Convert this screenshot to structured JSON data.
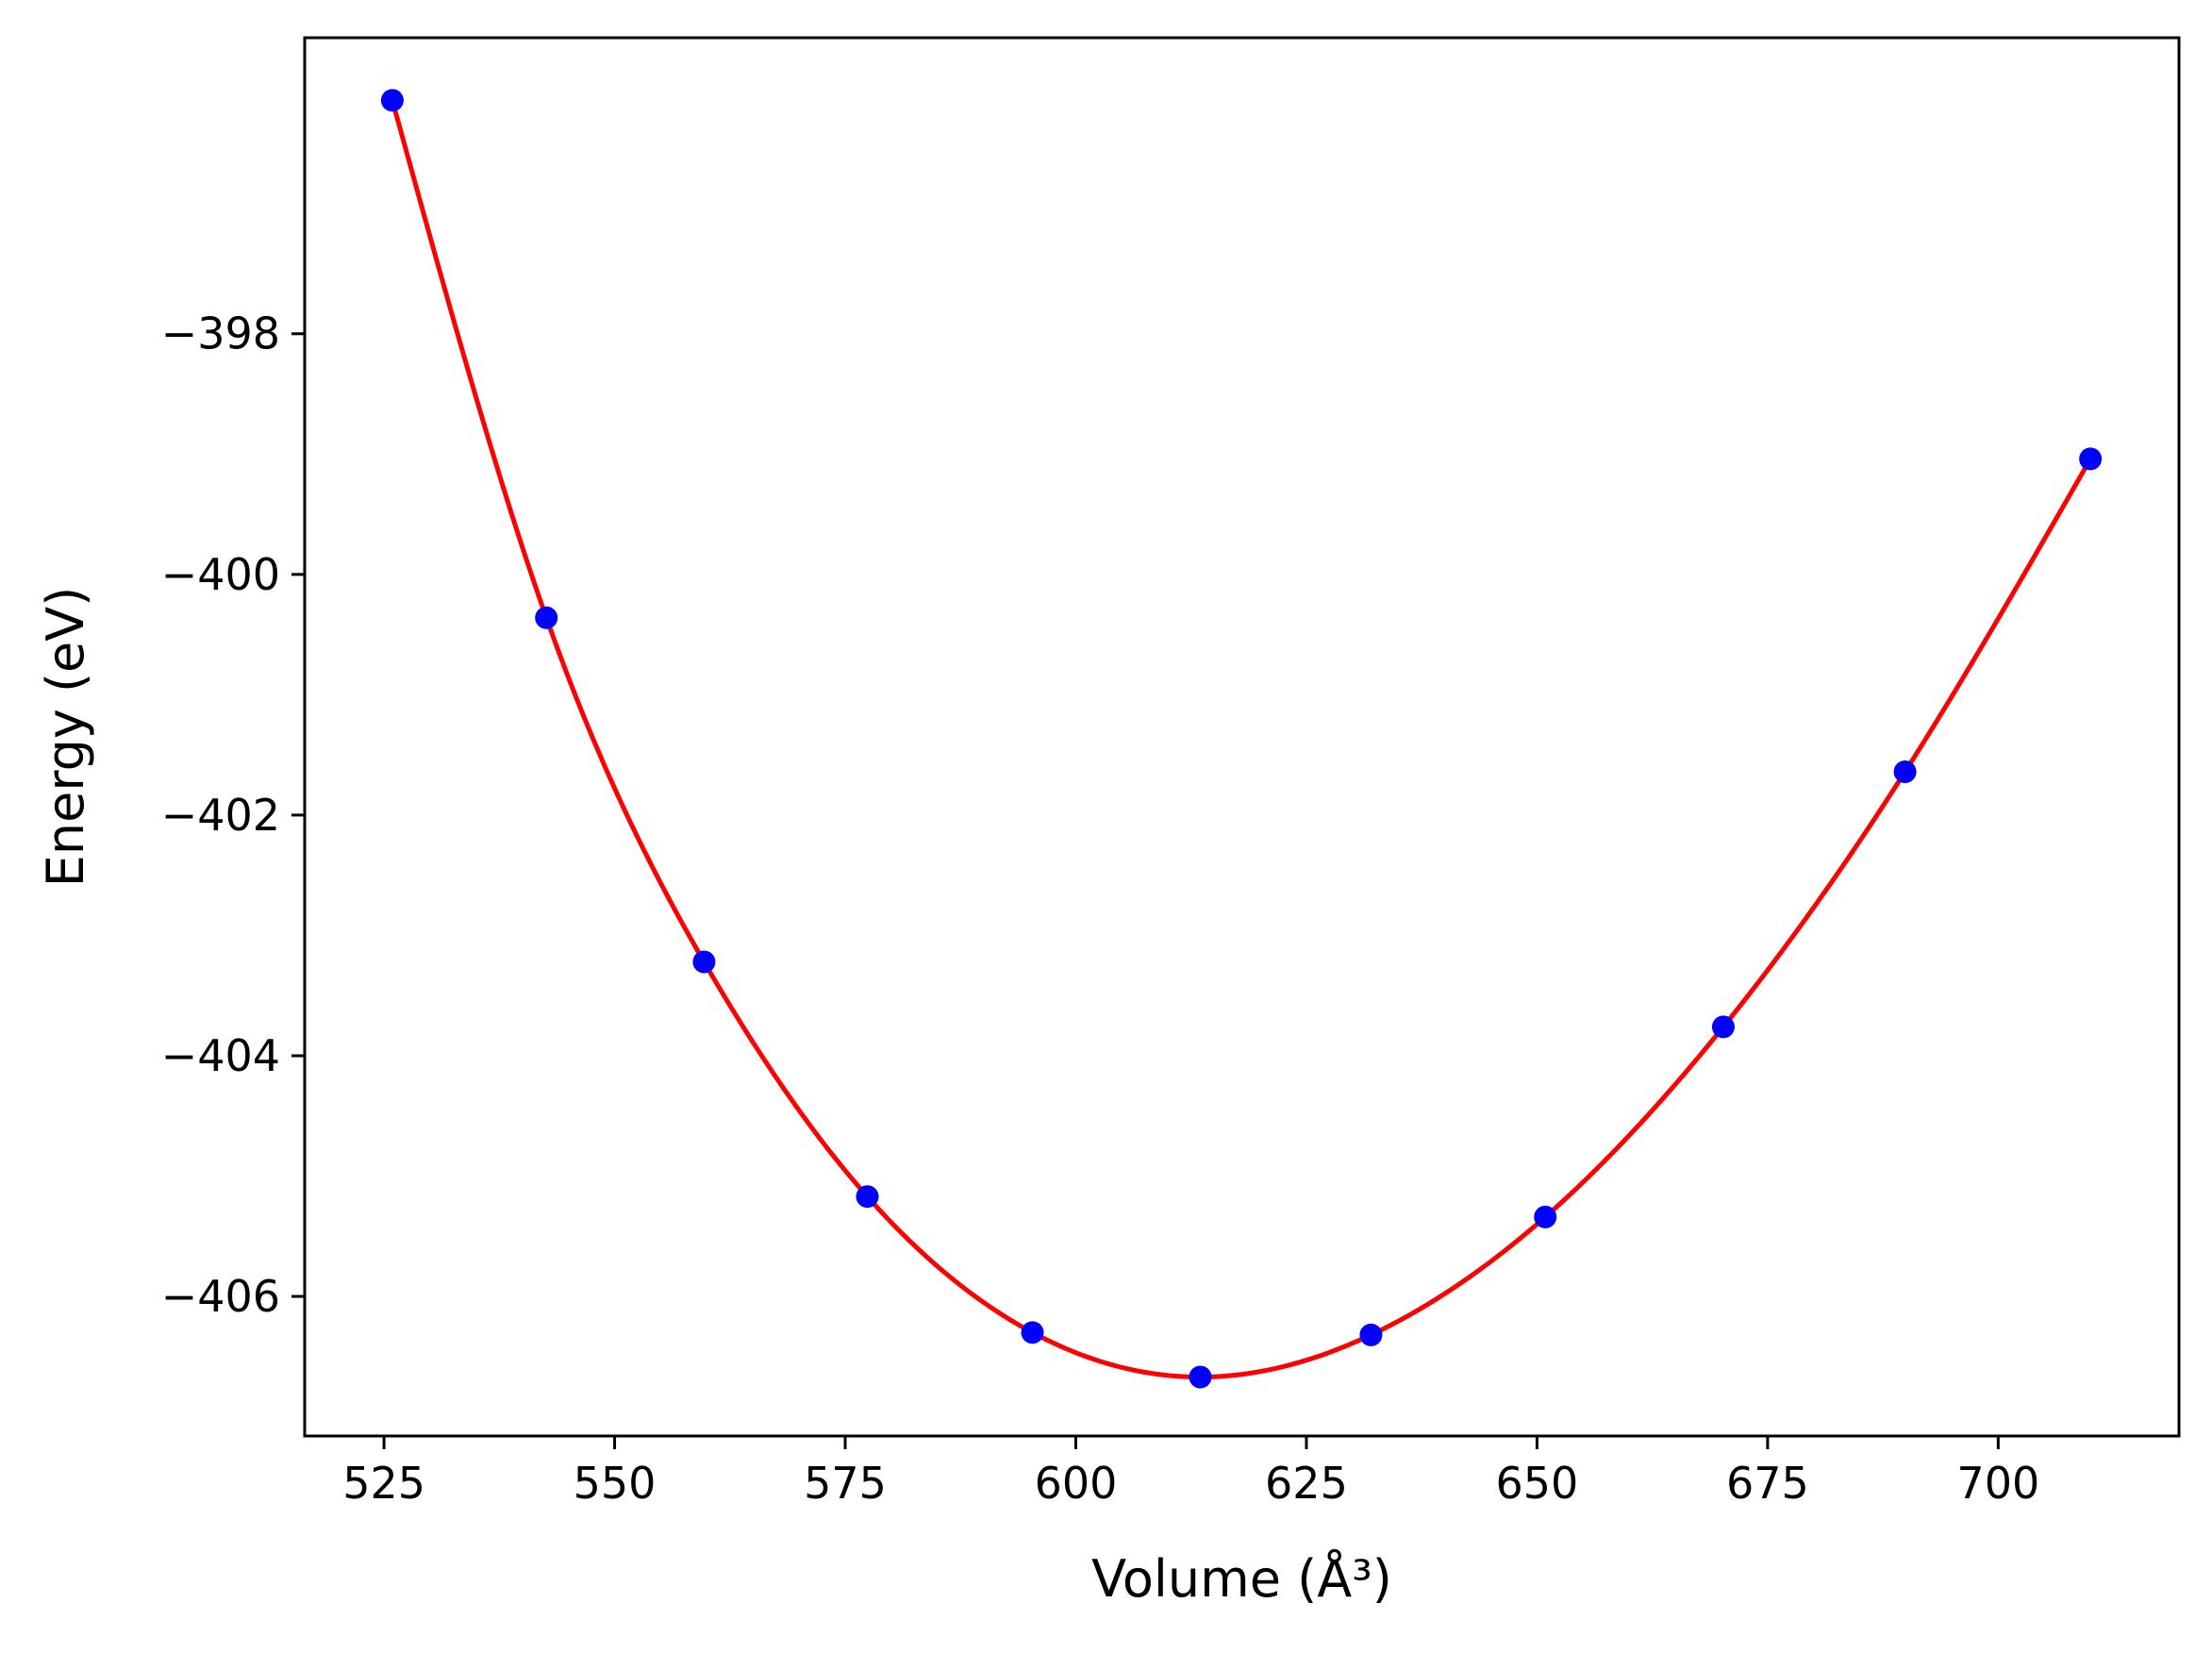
{
  "chart_data": {
    "type": "scatter",
    "xlabel": "Volume (Å³)",
    "ylabel": "Energy (eV)",
    "xlim": [
      516.4,
      719.6
    ],
    "ylim": [
      -407.16,
      -395.54
    ],
    "xticks": [
      525,
      550,
      575,
      600,
      625,
      650,
      675,
      700
    ],
    "yticks": [
      -398,
      -400,
      -402,
      -404,
      -406
    ],
    "xtick_labels": [
      "525",
      "550",
      "575",
      "600",
      "625",
      "650",
      "675",
      "700"
    ],
    "ytick_labels": [
      "−398",
      "−400",
      "−402",
      "−404",
      "−406"
    ],
    "grid": false,
    "series": [
      {
        "kind": "markers",
        "color": "#0000ff",
        "x": [
          525.9,
          542.6,
          559.7,
          577.4,
          595.3,
          613.5,
          632.0,
          650.9,
          670.2,
          689.9,
          710.0
        ],
        "y": [
          -396.06,
          -400.36,
          -403.22,
          -405.17,
          -406.3,
          -406.67,
          -406.32,
          -405.34,
          -403.76,
          -401.64,
          -399.04
        ]
      },
      {
        "kind": "fit-curve",
        "color": "#ff0000",
        "x_range": [
          525.9,
          710.0
        ]
      }
    ]
  }
}
